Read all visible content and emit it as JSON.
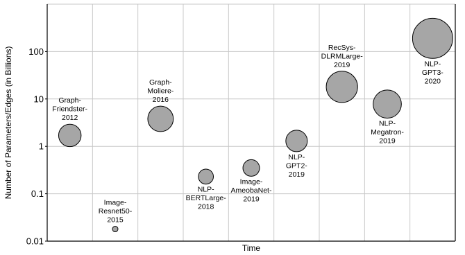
{
  "chart_data": {
    "type": "scatter",
    "title": "",
    "xlabel": "Time",
    "ylabel": "Number of Parameters/Edges (in Billions)",
    "yscale": "log",
    "ylim": [
      0.01,
      1000
    ],
    "y_ticks": [
      "0.01",
      "0.1",
      "1",
      "10",
      "100"
    ],
    "grid": true,
    "colors": {
      "bubble_fill": "#a6a6a6",
      "bubble_stroke": "#000000",
      "grid": "#c8c8c8"
    },
    "points": [
      {
        "label": [
          "Graph-",
          "Friendster-",
          "2012"
        ],
        "y": 1.7
      },
      {
        "label": [
          "Image-",
          "Resnet50-",
          "2015"
        ],
        "y": 0.018
      },
      {
        "label": [
          "Graph-",
          "Moliere-",
          "2016"
        ],
        "y": 3.8
      },
      {
        "label": [
          "NLP-",
          "BERTLarge-",
          "2018"
        ],
        "y": 0.23
      },
      {
        "label": [
          "Image-",
          "AmeobaNet-",
          "2019"
        ],
        "y": 0.35
      },
      {
        "label": [
          "NLP-",
          "GPT2-",
          "2019"
        ],
        "y": 1.3
      },
      {
        "label": [
          "RecSys-",
          "DLRMLarge-",
          "2019"
        ],
        "y": 18
      },
      {
        "label": [
          "NLP-",
          "Megatron-",
          "2019"
        ],
        "y": 7.8
      },
      {
        "label": [
          "NLP-",
          "GPT3-",
          "2020"
        ],
        "y": 190
      }
    ]
  }
}
